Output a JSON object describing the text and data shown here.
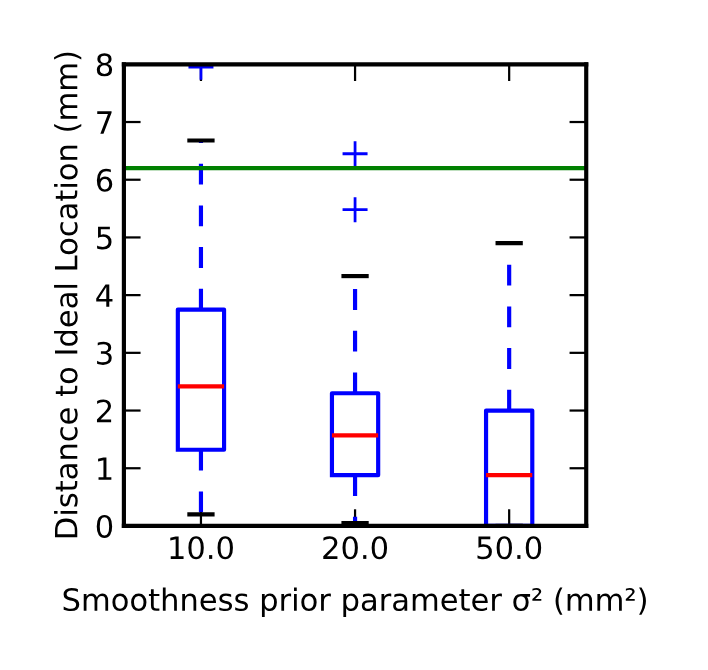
{
  "chart_data": {
    "type": "box",
    "xlabel": "Smoothness prior parameter σ² (mm²)",
    "ylabel": "Distance to Ideal Location (mm)",
    "categories": [
      "10.0",
      "20.0",
      "50.0"
    ],
    "boxes": [
      {
        "low": 0.2,
        "q1": 1.32,
        "median": 2.42,
        "q3": 3.75,
        "high": 6.68,
        "outliers": [
          7.95
        ]
      },
      {
        "low": 0.05,
        "q1": 0.88,
        "median": 1.57,
        "q3": 2.3,
        "high": 4.33,
        "outliers": [
          5.48,
          6.45
        ]
      },
      {
        "low": 0,
        "q1": 0,
        "median": 0.88,
        "q3": 2.0,
        "high": 4.9
      }
    ],
    "color": "#0000ff",
    "ylim": [
      0,
      8
    ],
    "yticks": [
      0,
      1,
      2,
      3,
      4,
      5,
      6,
      7,
      8
    ],
    "ref_lines": [
      {
        "axis": "y",
        "value": 6.2,
        "color": "#008000"
      }
    ],
    "grid": false
  }
}
